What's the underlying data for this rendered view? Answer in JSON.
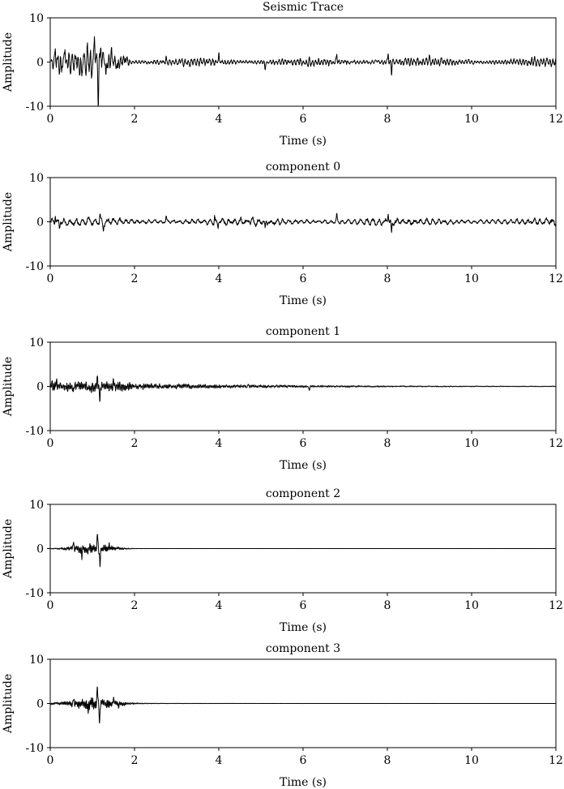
{
  "chart_data": [
    {
      "type": "line",
      "title": "Seismic Trace",
      "xlabel": "Time (s)",
      "ylabel": "Amplitude",
      "xlim": [
        0,
        12
      ],
      "ylim": [
        -10,
        10
      ],
      "xticks": [
        "0",
        "2",
        "4",
        "6",
        "8",
        "10",
        "12"
      ],
      "yticks": [
        "10",
        "0",
        "-10"
      ],
      "grid": false,
      "series": [
        {
          "time_range": [
            0.0,
            12.0
          ],
          "events": [
            {
              "t": 0.12,
              "a": 2.6
            },
            {
              "t": 0.22,
              "a": -2.2
            },
            {
              "t": 0.35,
              "a": 3.0
            },
            {
              "t": 0.48,
              "a": -2.6
            },
            {
              "t": 0.62,
              "a": 2.8
            },
            {
              "t": 0.75,
              "a": -3.2
            },
            {
              "t": 0.88,
              "a": 3.4
            },
            {
              "t": 0.98,
              "a": -3.8
            },
            {
              "t": 1.05,
              "a": 4.8
            },
            {
              "t": 1.14,
              "a": -10.0
            },
            {
              "t": 1.2,
              "a": 4.5
            },
            {
              "t": 1.32,
              "a": -3.6
            },
            {
              "t": 1.45,
              "a": 3.0
            },
            {
              "t": 1.6,
              "a": -2.4
            },
            {
              "t": 1.78,
              "a": 1.8
            },
            {
              "t": 2.75,
              "a": 1.4
            },
            {
              "t": 4.0,
              "a": 1.5
            },
            {
              "t": 5.1,
              "a": -1.6
            },
            {
              "t": 6.8,
              "a": 1.6
            },
            {
              "t": 8.02,
              "a": 2.0
            },
            {
              "t": 8.1,
              "a": -2.8
            },
            {
              "t": 9.0,
              "a": 1.2
            }
          ]
        }
      ]
    },
    {
      "type": "line",
      "title": "component 0",
      "xlabel": "Time (s)",
      "ylabel": "Amplitude",
      "xlim": [
        0,
        12
      ],
      "ylim": [
        -10,
        10
      ],
      "xticks": [
        "0",
        "2",
        "4",
        "6",
        "8",
        "10",
        "12"
      ],
      "yticks": [
        "10",
        "0",
        "-10"
      ],
      "grid": false,
      "series": [
        {
          "time_range": [
            0.0,
            12.0
          ],
          "events": [
            {
              "t": 0.12,
              "a": 1.8
            },
            {
              "t": 0.22,
              "a": -1.4
            },
            {
              "t": 1.18,
              "a": 2.0
            },
            {
              "t": 1.26,
              "a": -1.8
            },
            {
              "t": 2.75,
              "a": 1.2
            },
            {
              "t": 3.9,
              "a": 1.4
            },
            {
              "t": 3.98,
              "a": -1.3
            },
            {
              "t": 5.1,
              "a": -1.5
            },
            {
              "t": 6.8,
              "a": 1.6
            },
            {
              "t": 8.02,
              "a": 2.0
            },
            {
              "t": 8.1,
              "a": -2.6
            }
          ]
        }
      ]
    },
    {
      "type": "line",
      "title": "component 1",
      "xlabel": "Time (s)",
      "ylabel": "Amplitude",
      "xlim": [
        0,
        12
      ],
      "ylim": [
        -10,
        10
      ],
      "xticks": [
        "0",
        "2",
        "4",
        "6",
        "8",
        "10",
        "12"
      ],
      "yticks": [
        "10",
        "0",
        "-10"
      ],
      "grid": false,
      "series": [
        {
          "time_range": [
            0.0,
            12.0
          ],
          "events": [
            {
              "t": 0.15,
              "a": 1.3
            },
            {
              "t": 0.55,
              "a": -1.4
            },
            {
              "t": 1.12,
              "a": 2.0
            },
            {
              "t": 1.18,
              "a": -2.6
            },
            {
              "t": 1.5,
              "a": 1.2
            },
            {
              "t": 4.7,
              "a": 0.8
            },
            {
              "t": 6.15,
              "a": -1.0
            }
          ]
        }
      ]
    },
    {
      "type": "line",
      "title": "component 2",
      "xlabel": "Time (s)",
      "ylabel": "Amplitude",
      "xlim": [
        0,
        12
      ],
      "ylim": [
        -10,
        10
      ],
      "xticks": [
        "0",
        "2",
        "4",
        "6",
        "8",
        "10",
        "12"
      ],
      "yticks": [
        "10",
        "0",
        "-10"
      ],
      "grid": false,
      "series": [
        {
          "time_range": [
            0.0,
            12.0
          ],
          "events": [
            {
              "t": 0.55,
              "a": 1.6
            },
            {
              "t": 0.75,
              "a": -1.8
            },
            {
              "t": 1.12,
              "a": 3.8
            },
            {
              "t": 1.18,
              "a": -3.6
            },
            {
              "t": 1.4,
              "a": 1.0
            }
          ]
        }
      ]
    },
    {
      "type": "line",
      "title": "component 3",
      "xlabel": "Time (s)",
      "ylabel": "Amplitude",
      "xlim": [
        0,
        12
      ],
      "ylim": [
        -10,
        10
      ],
      "xticks": [
        "0",
        "2",
        "4",
        "6",
        "8",
        "10",
        "12"
      ],
      "yticks": [
        "10",
        "0",
        "-10"
      ],
      "grid": false,
      "series": [
        {
          "time_range": [
            0.0,
            12.0
          ],
          "events": [
            {
              "t": 0.55,
              "a": 1.5
            },
            {
              "t": 0.9,
              "a": -1.8
            },
            {
              "t": 1.12,
              "a": 4.0
            },
            {
              "t": 1.17,
              "a": -4.2
            },
            {
              "t": 1.5,
              "a": 1.6
            },
            {
              "t": 1.62,
              "a": -1.2
            }
          ]
        }
      ]
    }
  ]
}
